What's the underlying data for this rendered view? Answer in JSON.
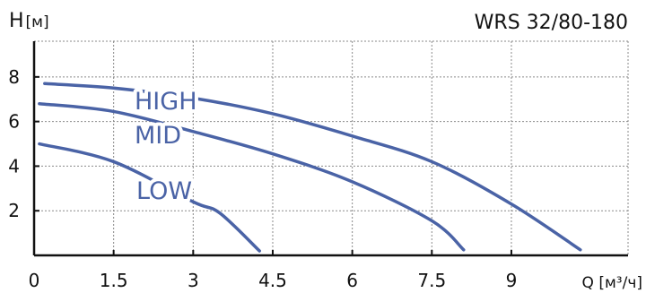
{
  "chart_data": {
    "type": "line",
    "title": "WRS 32/80-180",
    "ylabel": "H [м]",
    "xlabel": "Q [м³/ч]",
    "xlim": [
      0,
      11.2
    ],
    "ylim": [
      0,
      9.6
    ],
    "x_ticks": [
      0,
      1.5,
      3,
      4.5,
      6,
      7.5,
      9
    ],
    "x_tick_labels": [
      "0",
      "1.5",
      "3",
      "4.5",
      "6",
      "7.5",
      "9"
    ],
    "y_ticks": [
      2,
      4,
      6,
      8
    ],
    "y_tick_labels": [
      "2",
      "4",
      "6",
      "8"
    ],
    "grid": true,
    "colors": {
      "curve": "#4a63a6",
      "grid": "#8a8a8a",
      "axis": "#111111"
    },
    "series": [
      {
        "name": "HIGH",
        "points": [
          [
            0.2,
            7.7
          ],
          [
            1.5,
            7.5
          ],
          [
            3,
            7.05
          ],
          [
            4.5,
            6.35
          ],
          [
            6,
            5.35
          ],
          [
            7.5,
            4.2
          ],
          [
            9,
            2.3
          ],
          [
            10.3,
            0.25
          ]
        ]
      },
      {
        "name": "MID",
        "points": [
          [
            0.1,
            6.8
          ],
          [
            1.5,
            6.45
          ],
          [
            3,
            5.55
          ],
          [
            4.5,
            4.55
          ],
          [
            6,
            3.3
          ],
          [
            7.5,
            1.55
          ],
          [
            8.1,
            0.25
          ]
        ]
      },
      {
        "name": "LOW",
        "points": [
          [
            0.1,
            5.0
          ],
          [
            1.5,
            4.2
          ],
          [
            3,
            2.4
          ],
          [
            3.5,
            1.9
          ],
          [
            4.25,
            0.2
          ]
        ]
      }
    ]
  }
}
